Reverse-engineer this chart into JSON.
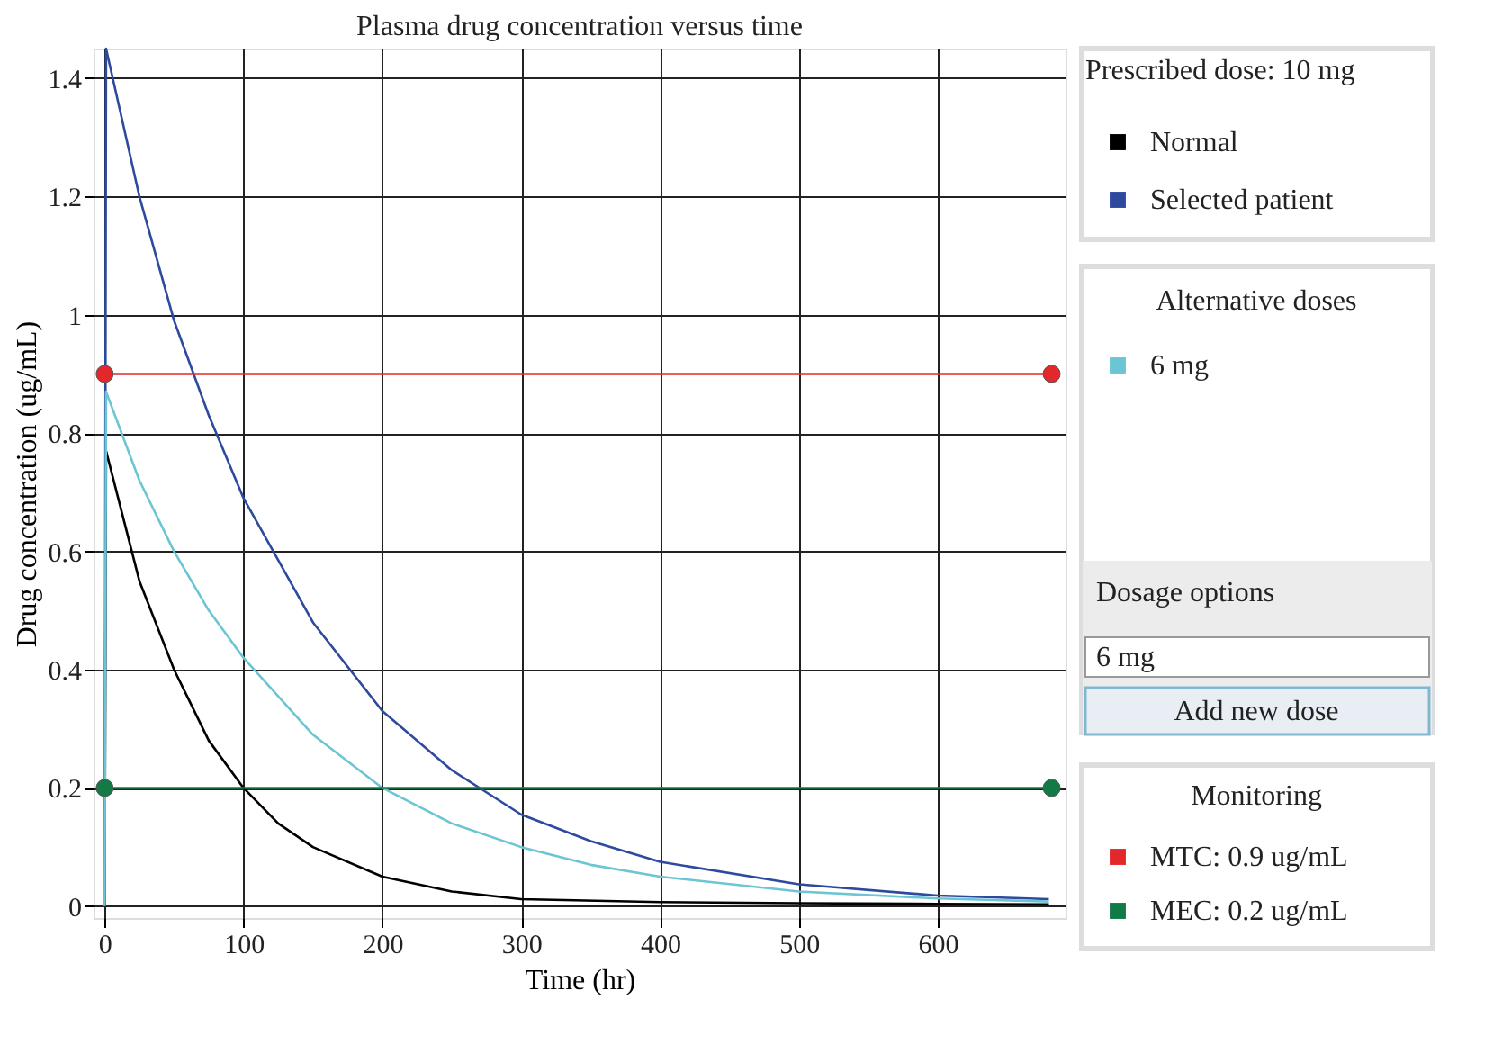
{
  "chart_data": {
    "type": "line",
    "title": "Plasma drug concentration versus time",
    "xlabel": "Time (hr)",
    "ylabel": "Drug concentration (ug/mL)",
    "legend_title": "Prescribed dose: 10 mg",
    "series": [
      {
        "name": "Normal",
        "color": "#000000",
        "x": [
          0,
          1,
          25,
          50,
          75,
          100,
          125,
          150,
          200,
          250,
          300,
          400,
          500,
          600,
          680
        ],
        "values": [
          0,
          0.77,
          0.55,
          0.4,
          0.28,
          0.2,
          0.14,
          0.1,
          0.05,
          0.025,
          0.012,
          0.007,
          0.005,
          0.004,
          0.003
        ]
      },
      {
        "name": "Selected patient",
        "color": "#2e4a9e",
        "x": [
          0,
          1,
          25,
          50,
          75,
          100,
          150,
          200,
          250,
          300,
          350,
          400,
          500,
          600,
          680
        ],
        "values": [
          0,
          1.45,
          1.2,
          0.99,
          0.83,
          0.69,
          0.48,
          0.33,
          0.23,
          0.155,
          0.11,
          0.075,
          0.037,
          0.018,
          0.012
        ]
      },
      {
        "name": "6 mg",
        "color": "#6cc5d4",
        "x": [
          0,
          1,
          25,
          50,
          75,
          100,
          150,
          200,
          250,
          300,
          350,
          400,
          500,
          600,
          680
        ],
        "values": [
          0,
          0.87,
          0.72,
          0.6,
          0.5,
          0.42,
          0.29,
          0.2,
          0.14,
          0.1,
          0.07,
          0.05,
          0.025,
          0.013,
          0.008
        ]
      },
      {
        "name": "MTC: 0.9 ug/mL",
        "color": "#e3282b",
        "marker": "circle",
        "x": [
          0,
          682
        ],
        "values": [
          0.9,
          0.9
        ]
      },
      {
        "name": "MEC: 0.2 ug/mL",
        "color": "#127a45",
        "marker": "circle",
        "x": [
          0,
          682
        ],
        "values": [
          0.2,
          0.2
        ]
      }
    ],
    "annotations": [
      "Alternative doses",
      "Dosage options",
      "6 mg",
      "Add new dose",
      "Monitoring"
    ],
    "xlim": [
      -8,
      692
    ],
    "ylim": [
      -0.02,
      1.45
    ],
    "xticks": [
      0,
      100,
      200,
      300,
      400,
      500,
      600
    ],
    "yticks": [
      {
        "value": 0,
        "label": "0"
      },
      0.2,
      0.4,
      0.6,
      0.8,
      {
        "value": 1,
        "label": "1"
      },
      1.2,
      1.4
    ],
    "grid": true,
    "legend": "right",
    "marker": "none",
    "line_style": "solid"
  }
}
